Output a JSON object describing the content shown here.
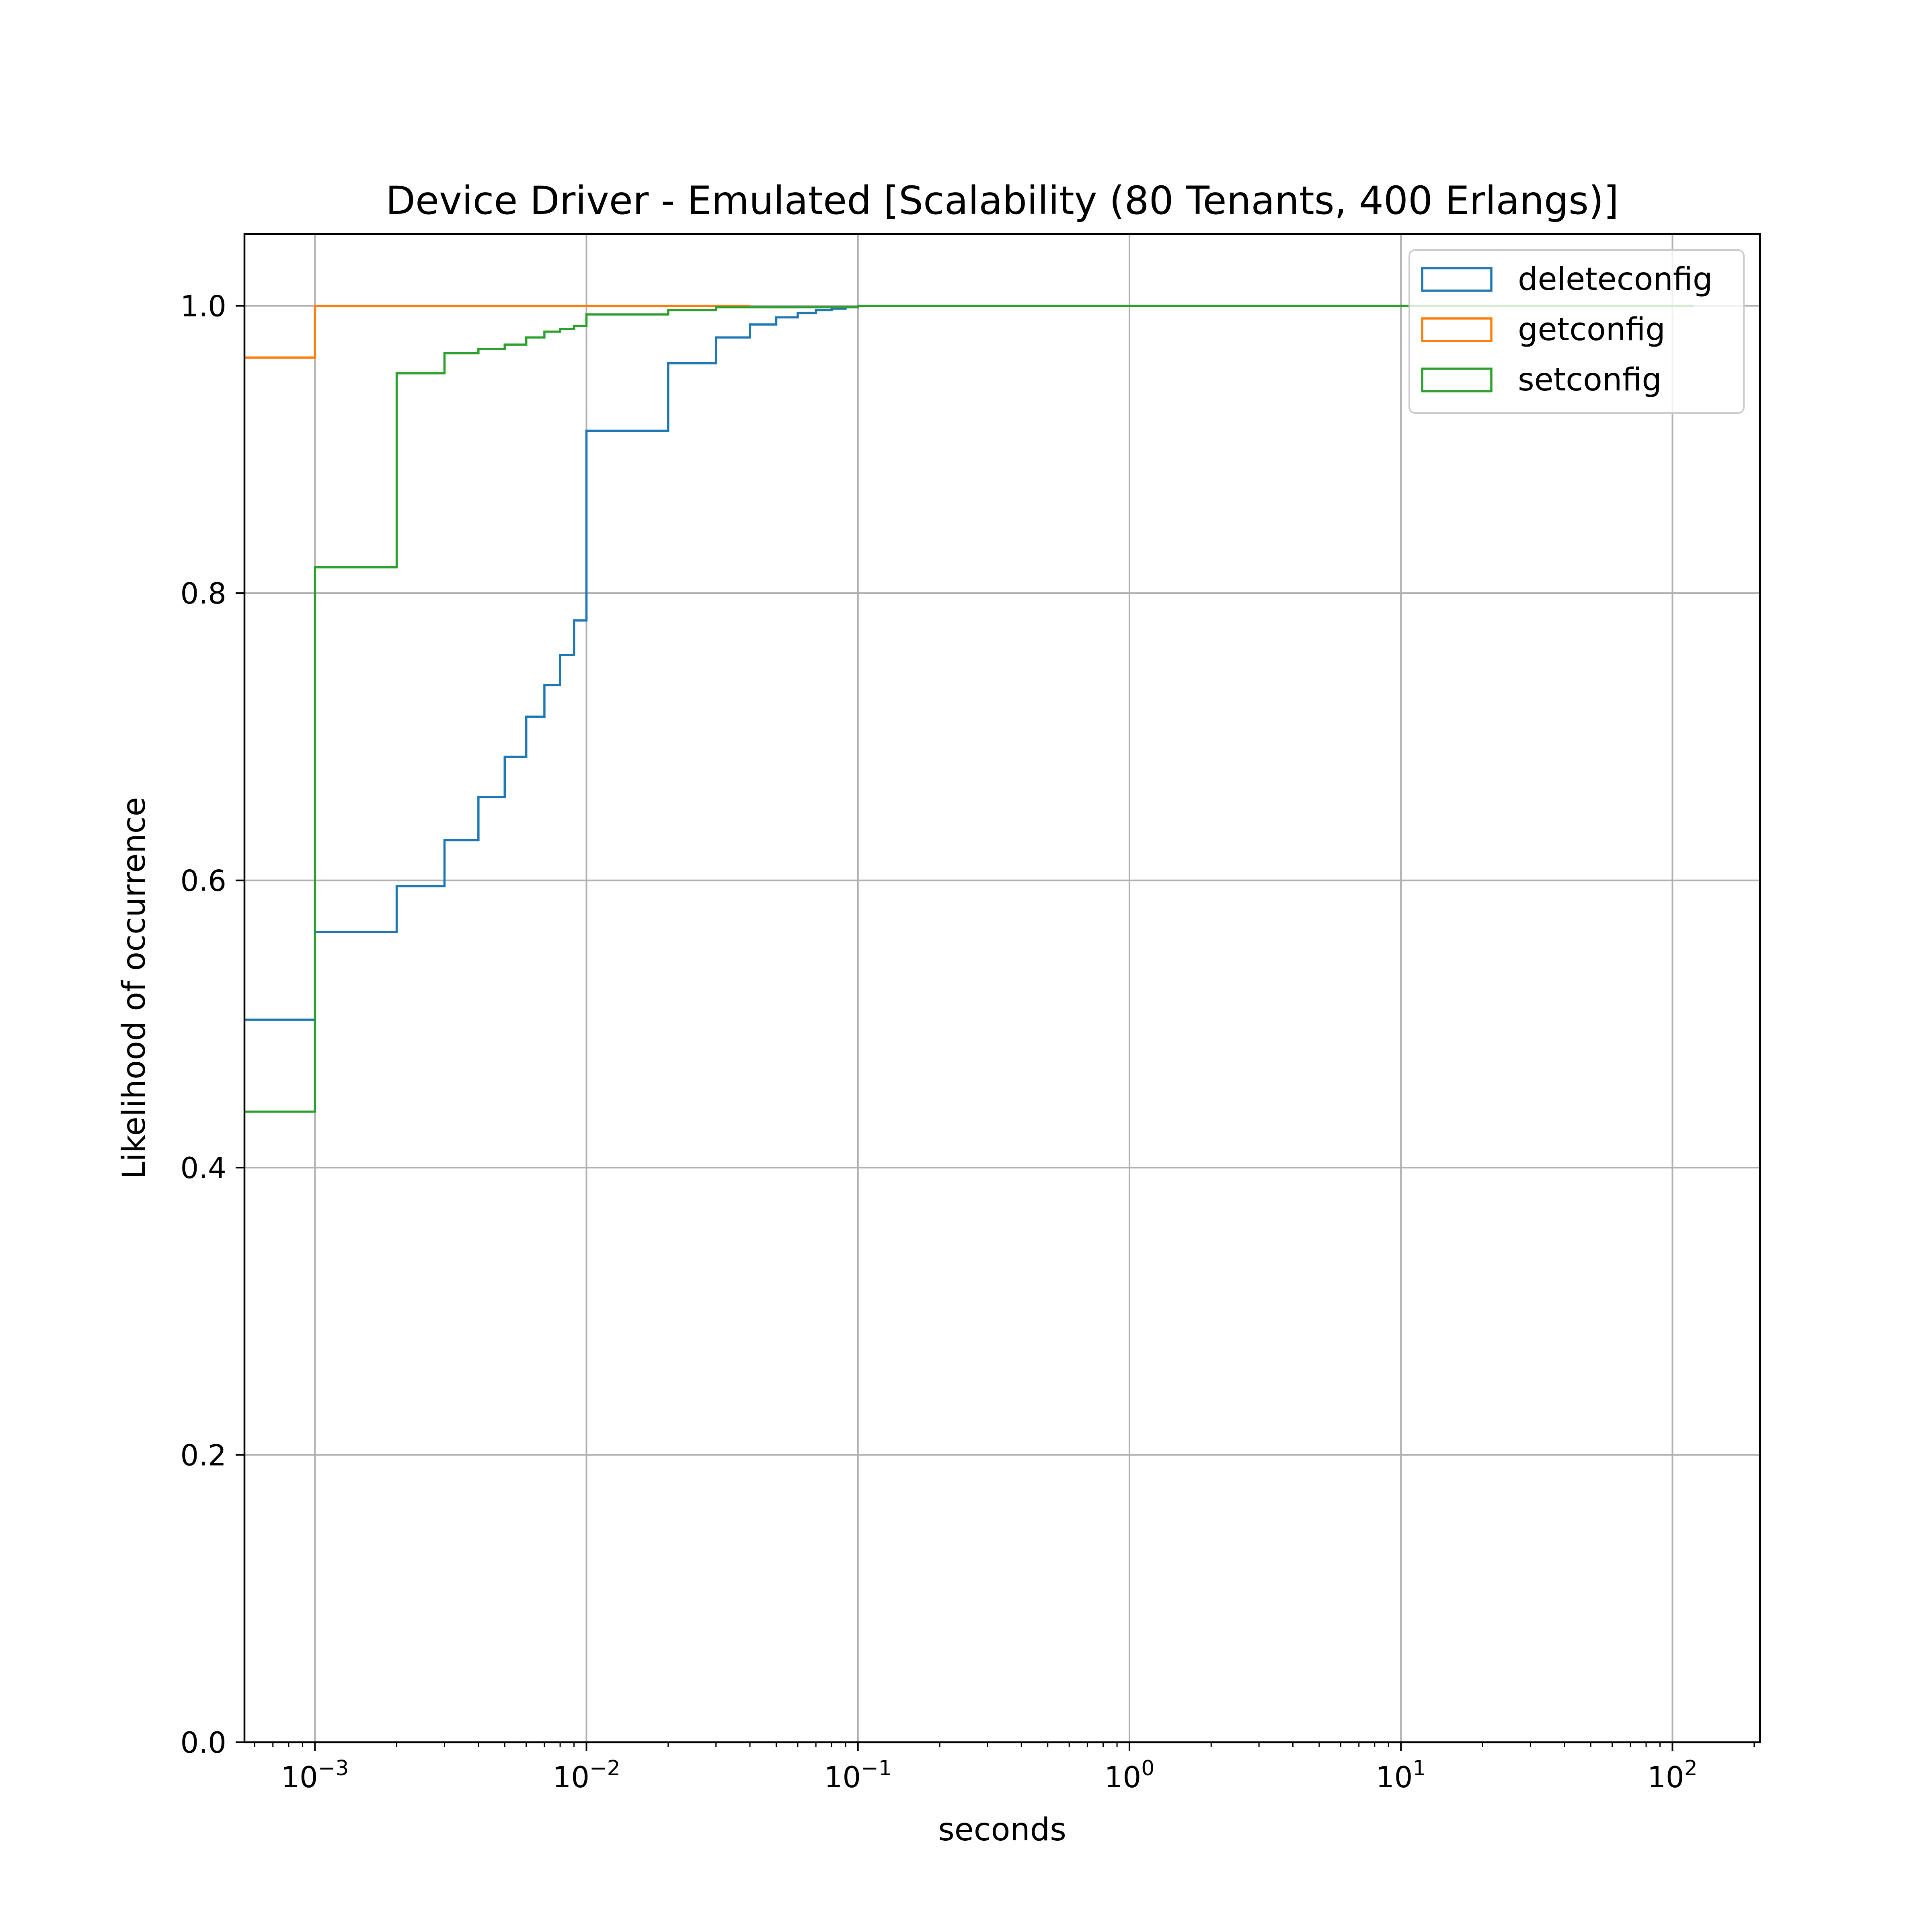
{
  "chart_data": {
    "type": "line",
    "subtype": "step-cdf-histogram",
    "title": "Device Driver - Emulated [Scalability (80 Tenants, 400 Erlangs)]",
    "xlabel": "seconds",
    "ylabel": "Likelihood of occurrence",
    "xscale": "log",
    "xlim": [
      0.00055,
      210
    ],
    "ylim": [
      0.0,
      1.05
    ],
    "grid": true,
    "legend_position": "top-right",
    "x_ticks": [
      {
        "value": 0.001,
        "base": "10",
        "exp": "−3"
      },
      {
        "value": 0.01,
        "base": "10",
        "exp": "−2"
      },
      {
        "value": 0.1,
        "base": "10",
        "exp": "−1"
      },
      {
        "value": 1,
        "base": "10",
        "exp": "0"
      },
      {
        "value": 10,
        "base": "10",
        "exp": "1"
      },
      {
        "value": 100,
        "base": "10",
        "exp": "2"
      }
    ],
    "y_ticks": [
      {
        "value": 0.0,
        "label": "0.0"
      },
      {
        "value": 0.2,
        "label": "0.2"
      },
      {
        "value": 0.4,
        "label": "0.4"
      },
      {
        "value": 0.6,
        "label": "0.6"
      },
      {
        "value": 0.8,
        "label": "0.8"
      },
      {
        "value": 1.0,
        "label": "1.0"
      }
    ],
    "series": [
      {
        "name": "deleteconfig",
        "color": "#1f77b4",
        "x_end": 0.1,
        "steps": [
          [
            0.00055,
            0.503
          ],
          [
            0.001,
            0.564
          ],
          [
            0.002,
            0.596
          ],
          [
            0.003,
            0.628
          ],
          [
            0.004,
            0.658
          ],
          [
            0.005,
            0.686
          ],
          [
            0.006,
            0.714
          ],
          [
            0.007,
            0.736
          ],
          [
            0.008,
            0.757
          ],
          [
            0.009,
            0.781
          ],
          [
            0.01,
            0.913
          ],
          [
            0.02,
            0.96
          ],
          [
            0.03,
            0.978
          ],
          [
            0.04,
            0.987
          ],
          [
            0.05,
            0.992
          ],
          [
            0.06,
            0.995
          ],
          [
            0.07,
            0.997
          ],
          [
            0.08,
            0.998
          ],
          [
            0.09,
            0.999
          ]
        ]
      },
      {
        "name": "getconfig",
        "color": "#ff7f0e",
        "x_end": 0.04,
        "steps": [
          [
            0.00055,
            0.964
          ],
          [
            0.001,
            1.0
          ]
        ]
      },
      {
        "name": "setconfig",
        "color": "#2ca02c",
        "x_end": 120,
        "steps": [
          [
            0.00055,
            0.439
          ],
          [
            0.001,
            0.818
          ],
          [
            0.002,
            0.953
          ],
          [
            0.003,
            0.967
          ],
          [
            0.004,
            0.97
          ],
          [
            0.005,
            0.973
          ],
          [
            0.006,
            0.978
          ],
          [
            0.007,
            0.982
          ],
          [
            0.008,
            0.984
          ],
          [
            0.009,
            0.986
          ],
          [
            0.01,
            0.994
          ],
          [
            0.02,
            0.997
          ],
          [
            0.03,
            0.999
          ],
          [
            0.1,
            1.0
          ]
        ]
      }
    ]
  }
}
